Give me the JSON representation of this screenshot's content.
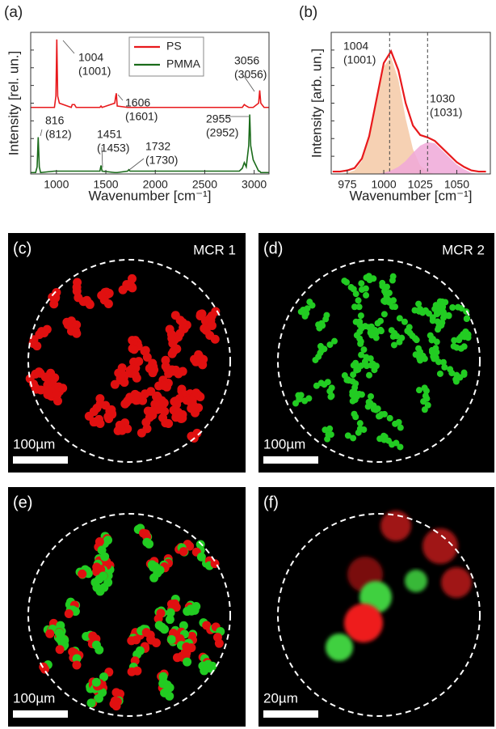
{
  "chart_data": [
    {
      "type": "line",
      "panel": "(a)",
      "xlabel": "Wavenumber [cm⁻¹]",
      "ylabel": "Intensity [rel. un.]",
      "xlim": [
        740,
        3150
      ],
      "ylim": [
        0,
        1
      ],
      "xticks": [
        1000,
        1500,
        2000,
        2500,
        3000
      ],
      "x": [
        740,
        790,
        805,
        816,
        827,
        840,
        980,
        995,
        1004,
        1013,
        1030,
        1150,
        1160,
        1183,
        1200,
        1440,
        1451,
        1462,
        1590,
        1600,
        1606,
        1615,
        1720,
        1732,
        1745,
        2850,
        2880,
        2900,
        2920,
        2945,
        2955,
        2965,
        2990,
        3045,
        3056,
        3067,
        3100,
        3150
      ],
      "series": [
        {
          "name": "PS",
          "color": "#e8191c",
          "values": [
            0.47,
            0.47,
            0.47,
            0.47,
            0.47,
            0.47,
            0.47,
            0.55,
            0.95,
            0.55,
            0.5,
            0.47,
            0.49,
            0.49,
            0.47,
            0.47,
            0.48,
            0.47,
            0.5,
            0.55,
            0.57,
            0.48,
            0.47,
            0.47,
            0.47,
            0.47,
            0.47,
            0.49,
            0.48,
            0.47,
            0.47,
            0.47,
            0.47,
            0.5,
            0.59,
            0.5,
            0.47,
            0.47
          ]
        },
        {
          "name": "PMMA",
          "color": "#1a6b1a",
          "values": [
            0.01,
            0.01,
            0.05,
            0.26,
            0.05,
            0.01,
            0.02,
            0.02,
            0.02,
            0.02,
            0.02,
            0.02,
            0.02,
            0.02,
            0.02,
            0.02,
            0.06,
            0.02,
            0.01,
            0.01,
            0.01,
            0.01,
            0.02,
            0.03,
            0.02,
            0.02,
            0.04,
            0.08,
            0.05,
            0.2,
            0.42,
            0.2,
            0.1,
            0.02,
            0.02,
            0.01,
            0.01,
            0.01
          ]
        }
      ],
      "annotations": [
        {
          "label": "1004",
          "sub": "(1001)"
        },
        {
          "label": "1606",
          "sub": "(1601)"
        },
        {
          "label": "3056",
          "sub": "(3056)"
        },
        {
          "label": "816",
          "sub": "(812)"
        },
        {
          "label": "1451",
          "sub": "(1453)"
        },
        {
          "label": "1732",
          "sub": "(1730)"
        },
        {
          "label": "2955",
          "sub": "(2952)"
        }
      ]
    },
    {
      "type": "line",
      "panel": "(b)",
      "xlabel": "Wavenumber [cm⁻¹]",
      "ylabel": "Intensity [arb. un.]",
      "xlim": [
        964,
        1073
      ],
      "ylim": [
        0,
        1.2
      ],
      "xticks": [
        975,
        1000,
        1025,
        1050
      ],
      "x": [
        965,
        970,
        975,
        980,
        985,
        990,
        995,
        1000,
        1005,
        1010,
        1015,
        1020,
        1025,
        1030,
        1035,
        1040,
        1045,
        1050,
        1055,
        1060,
        1065,
        1070
      ],
      "series": [
        {
          "color": "#f5c9a6",
          "fill": true,
          "values": [
            0,
            0,
            0.01,
            0.03,
            0.11,
            0.3,
            0.61,
            0.91,
            0.99,
            0.8,
            0.47,
            0.21,
            0.07,
            0.02,
            0,
            0,
            0,
            0,
            0,
            0,
            0,
            0
          ]
        },
        {
          "color": "#f0a8d8",
          "fill": true,
          "values": [
            0,
            0,
            0,
            0,
            0,
            0,
            0,
            0.01,
            0.03,
            0.06,
            0.11,
            0.18,
            0.24,
            0.27,
            0.26,
            0.2,
            0.14,
            0.08,
            0.04,
            0.01,
            0,
            0
          ]
        },
        {
          "color": "#e8191c",
          "fill": false,
          "values": [
            0.02,
            0.02,
            0.03,
            0.05,
            0.13,
            0.32,
            0.63,
            0.94,
            1.04,
            0.88,
            0.6,
            0.41,
            0.33,
            0.31,
            0.28,
            0.22,
            0.16,
            0.1,
            0.06,
            0.03,
            0.02,
            0.02
          ]
        }
      ],
      "annotations": [
        {
          "value": 1004,
          "label": "1004",
          "sub": "(1001)"
        },
        {
          "value": 1030,
          "label": "1030",
          "sub": "(1031)"
        }
      ]
    }
  ],
  "images": [
    {
      "label": "(c)",
      "caption": "MCR 1",
      "scale_bar": "100µm"
    },
    {
      "label": "(d)",
      "caption": "MCR 2",
      "scale_bar": "100µm"
    },
    {
      "label": "(e)",
      "scale_bar": "100µm"
    },
    {
      "label": "(f)",
      "scale_bar": "20µm"
    }
  ]
}
